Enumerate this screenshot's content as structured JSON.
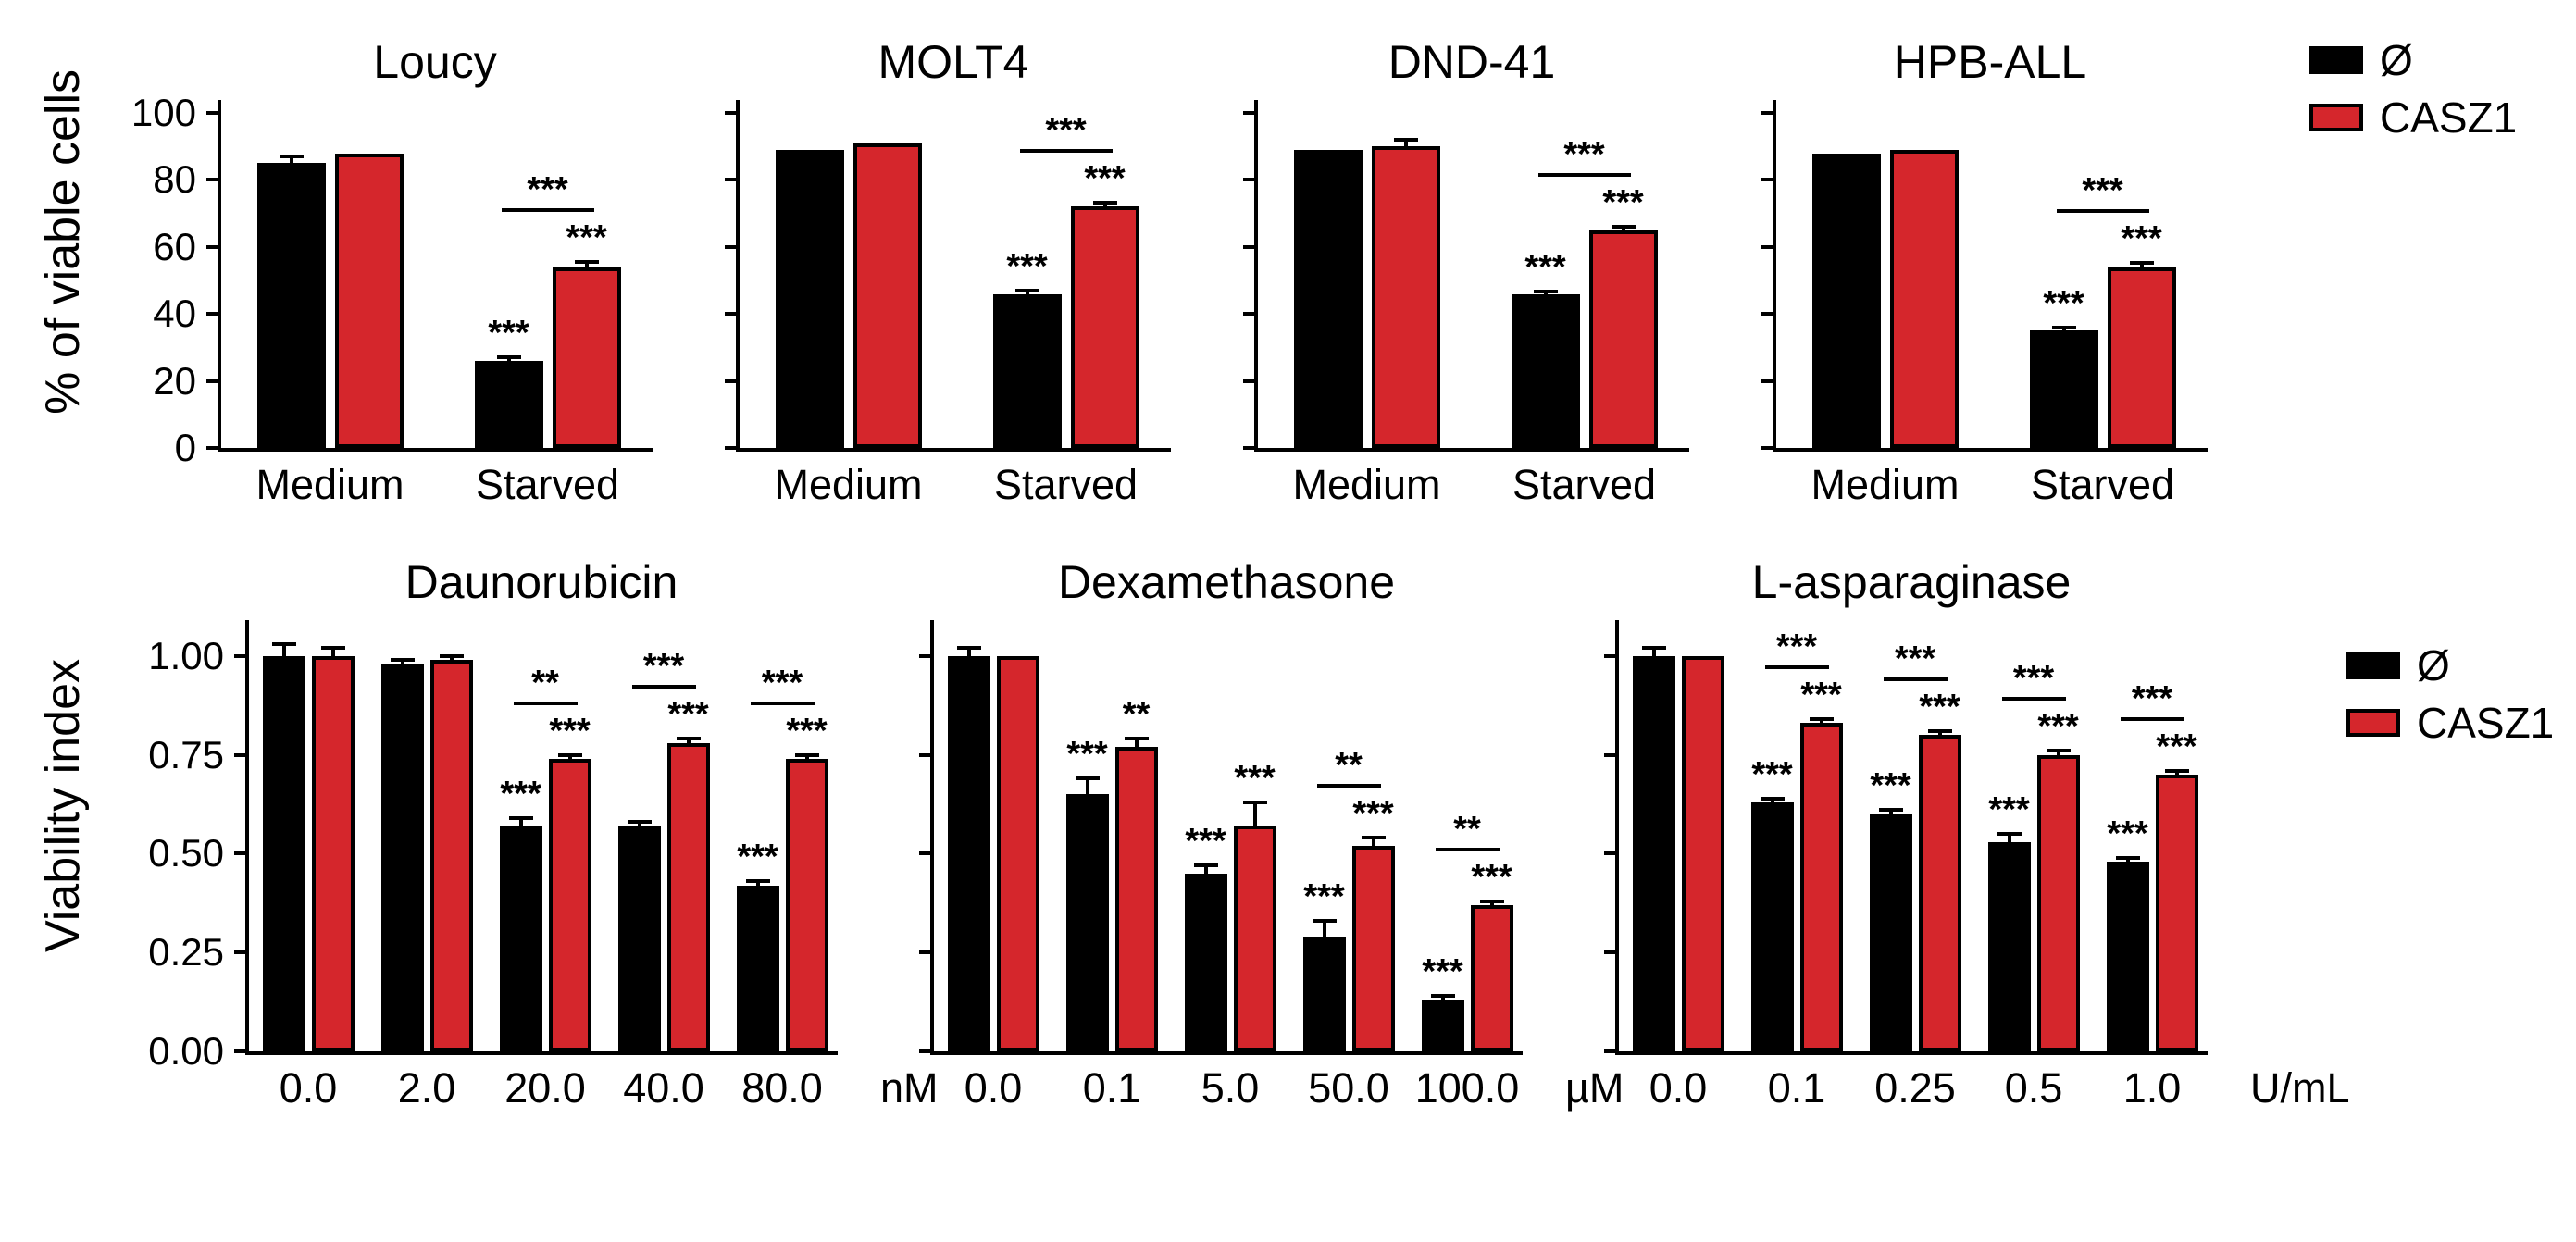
{
  "figure": {
    "background": "#ffffff",
    "series_colors": [
      "#000000",
      "#d5262c"
    ],
    "legend": {
      "entries": [
        {
          "label": "Ø",
          "color": "#000000"
        },
        {
          "label": "CASZ1",
          "color": "#d5262c"
        }
      ]
    },
    "rows": [
      {
        "ylabel": "% of viable cells"
      },
      {
        "ylabel": "Viability index"
      }
    ]
  },
  "chart_data": [
    {
      "type": "bar",
      "panel_row": 0,
      "title": "Loucy",
      "categories": [
        "Medium",
        "Starved"
      ],
      "unit": "",
      "ylim": [
        0,
        105
      ],
      "yticks": [
        0,
        20,
        40,
        60,
        80,
        100
      ],
      "show_ytick_labels": true,
      "series": [
        {
          "name": "Ø",
          "values": [
            85,
            26
          ],
          "errors": [
            2,
            1.2
          ],
          "sig": [
            "",
            "***"
          ]
        },
        {
          "name": "CASZ1",
          "values": [
            88,
            54
          ],
          "errors": [
            0,
            1.5
          ],
          "sig": [
            "",
            "***"
          ]
        }
      ],
      "pair_sig": [
        "",
        "***"
      ]
    },
    {
      "type": "bar",
      "panel_row": 0,
      "title": "MOLT4",
      "categories": [
        "Medium",
        "Starved"
      ],
      "unit": "",
      "ylim": [
        0,
        105
      ],
      "yticks": [
        0,
        20,
        40,
        60,
        80,
        100
      ],
      "show_ytick_labels": false,
      "series": [
        {
          "name": "Ø",
          "values": [
            89,
            46
          ],
          "errors": [
            0,
            1
          ],
          "sig": [
            "",
            "***"
          ]
        },
        {
          "name": "CASZ1",
          "values": [
            91,
            72
          ],
          "errors": [
            0,
            1.2
          ],
          "sig": [
            "",
            "***"
          ]
        }
      ],
      "pair_sig": [
        "",
        "***"
      ]
    },
    {
      "type": "bar",
      "panel_row": 0,
      "title": "DND-41",
      "categories": [
        "Medium",
        "Starved"
      ],
      "unit": "",
      "ylim": [
        0,
        105
      ],
      "yticks": [
        0,
        20,
        40,
        60,
        80,
        100
      ],
      "show_ytick_labels": false,
      "series": [
        {
          "name": "Ø",
          "values": [
            89,
            46
          ],
          "errors": [
            0,
            0.8
          ],
          "sig": [
            "",
            "***"
          ]
        },
        {
          "name": "CASZ1",
          "values": [
            90,
            65
          ],
          "errors": [
            2,
            1
          ],
          "sig": [
            "",
            "***"
          ]
        }
      ],
      "pair_sig": [
        "",
        "***"
      ]
    },
    {
      "type": "bar",
      "panel_row": 0,
      "title": "HPB-ALL",
      "categories": [
        "Medium",
        "Starved"
      ],
      "unit": "",
      "ylim": [
        0,
        105
      ],
      "yticks": [
        0,
        20,
        40,
        60,
        80,
        100
      ],
      "show_ytick_labels": false,
      "series": [
        {
          "name": "Ø",
          "values": [
            88,
            35
          ],
          "errors": [
            0,
            1
          ],
          "sig": [
            "",
            "***"
          ]
        },
        {
          "name": "CASZ1",
          "values": [
            89,
            54
          ],
          "errors": [
            0,
            1.2
          ],
          "sig": [
            "",
            "***"
          ]
        }
      ],
      "pair_sig": [
        "",
        "***"
      ]
    },
    {
      "type": "bar",
      "panel_row": 1,
      "title": "Daunorubicin",
      "categories": [
        "0.0",
        "2.0",
        "20.0",
        "40.0",
        "80.0"
      ],
      "unit": "nM",
      "ylim": [
        0,
        1.1
      ],
      "yticks": [
        0,
        0.25,
        0.5,
        0.75,
        1
      ],
      "show_ytick_labels": true,
      "series": [
        {
          "name": "Ø",
          "values": [
            1.0,
            0.98,
            0.57,
            0.57,
            0.42
          ],
          "errors": [
            0.03,
            0.01,
            0.02,
            0.01,
            0.01
          ],
          "sig": [
            "",
            "",
            "***",
            "",
            "***"
          ]
        },
        {
          "name": "CASZ1",
          "values": [
            1.0,
            0.99,
            0.74,
            0.78,
            0.74
          ],
          "errors": [
            0.02,
            0.01,
            0.01,
            0.01,
            0.01
          ],
          "sig": [
            "",
            "",
            "***",
            "***",
            "***"
          ]
        }
      ],
      "pair_sig": [
        "",
        "",
        "**",
        "***",
        "***"
      ]
    },
    {
      "type": "bar",
      "panel_row": 1,
      "title": "Dexamethasone",
      "categories": [
        "0.0",
        "0.1",
        "5.0",
        "50.0",
        "100.0"
      ],
      "unit": "µM",
      "ylim": [
        0,
        1.1
      ],
      "yticks": [
        0,
        0.25,
        0.5,
        0.75,
        1
      ],
      "show_ytick_labels": false,
      "series": [
        {
          "name": "Ø",
          "values": [
            1.0,
            0.65,
            0.45,
            0.29,
            0.13
          ],
          "errors": [
            0.02,
            0.04,
            0.02,
            0.04,
            0.01
          ],
          "sig": [
            "",
            "***",
            "***",
            "***",
            "***"
          ]
        },
        {
          "name": "CASZ1",
          "values": [
            1.0,
            0.77,
            0.57,
            0.52,
            0.37
          ],
          "errors": [
            0,
            0.02,
            0.06,
            0.02,
            0.01
          ],
          "sig": [
            "",
            "**",
            "***",
            "***",
            "***"
          ]
        }
      ],
      "pair_sig": [
        "",
        "",
        "",
        "**",
        "**"
      ]
    },
    {
      "type": "bar",
      "panel_row": 1,
      "title": "L-asparaginase",
      "categories": [
        "0.0",
        "0.1",
        "0.25",
        "0.5",
        "1.0"
      ],
      "unit": "U/mL",
      "ylim": [
        0,
        1.1
      ],
      "yticks": [
        0,
        0.25,
        0.5,
        0.75,
        1
      ],
      "show_ytick_labels": false,
      "series": [
        {
          "name": "Ø",
          "values": [
            1.0,
            0.63,
            0.6,
            0.53,
            0.48
          ],
          "errors": [
            0.02,
            0.01,
            0.01,
            0.02,
            0.01
          ],
          "sig": [
            "",
            "***",
            "***",
            "***",
            "***"
          ]
        },
        {
          "name": "CASZ1",
          "values": [
            1.0,
            0.83,
            0.8,
            0.75,
            0.7
          ],
          "errors": [
            0,
            0.01,
            0.01,
            0.01,
            0.01
          ],
          "sig": [
            "",
            "***",
            "***",
            "***",
            "***"
          ]
        }
      ],
      "pair_sig": [
        "",
        "***",
        "***",
        "***",
        "***"
      ]
    }
  ]
}
